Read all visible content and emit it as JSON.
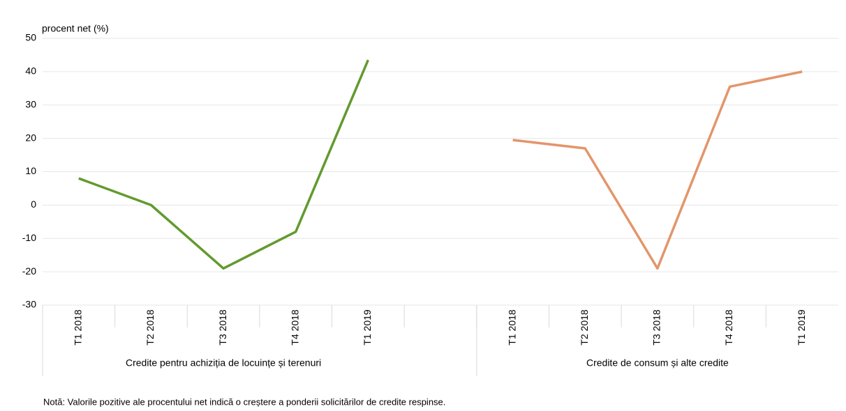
{
  "chart_data": {
    "type": "line",
    "y_label": "procent net (%)",
    "categories": [
      "T1 2018",
      "T2 2018",
      "T3 2018",
      "T4 2018",
      "T1 2019",
      null,
      "T1 2018",
      "T2 2018",
      "T3 2018",
      "T4 2018",
      "T1 2019"
    ],
    "group_labels": [
      "Credite pentru achiziția de locuințe și terenuri",
      "Credite de consum și alte credite"
    ],
    "series": [
      {
        "name": "Credite pentru achiziția de locuințe și terenuri",
        "color": "#629a2e",
        "values": [
          8,
          0,
          -19,
          -8,
          43.5,
          null,
          null,
          null,
          null,
          null,
          null
        ]
      },
      {
        "name": "Credite de consum și alte credite",
        "color": "#e3956b",
        "values": [
          null,
          null,
          null,
          null,
          null,
          null,
          19.5,
          17,
          -19,
          35.5,
          40
        ]
      }
    ],
    "ylim": [
      -30,
      50
    ],
    "yticks": [
      -30,
      -20,
      -10,
      0,
      10,
      20,
      30,
      40,
      50
    ],
    "grid": true,
    "note": "Notă: Valorile pozitive ale procentului net indică o creștere a ponderii solicitărilor de credite respinse."
  }
}
